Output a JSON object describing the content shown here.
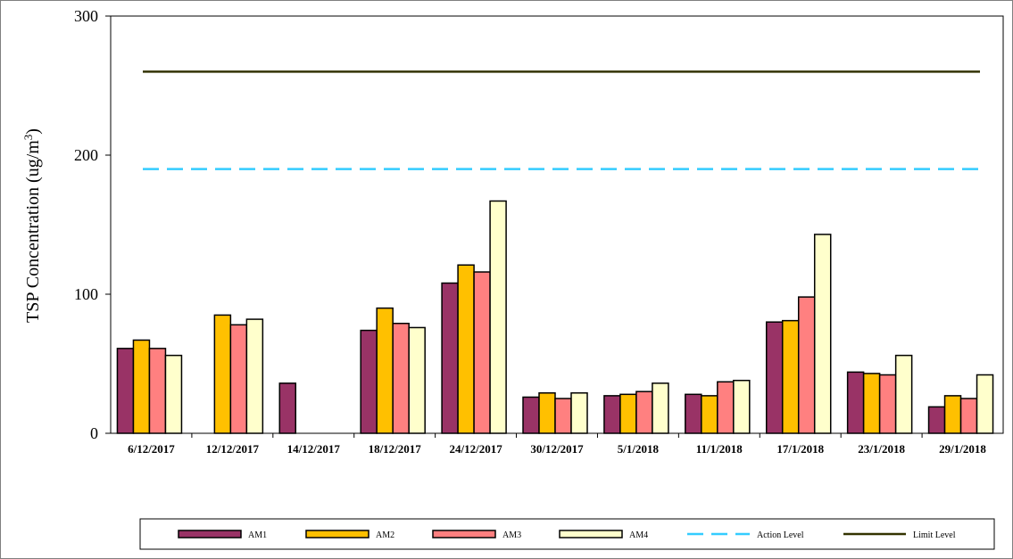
{
  "chart_data": {
    "type": "bar",
    "ylabel_prefix": "TSP Concentration (ug/m",
    "ylabel_sup": "3",
    "ylabel_suffix": ")",
    "ylim": [
      0,
      300
    ],
    "yticks": [
      "0",
      "100",
      "200",
      "300"
    ],
    "categories": [
      "6/12/2017",
      "12/12/2017",
      "14/12/2017",
      "18/12/2017",
      "24/12/2017",
      "30/12/2017",
      "5/1/2018",
      "11/1/2018",
      "17/1/2018",
      "23/1/2018",
      "29/1/2018"
    ],
    "series": [
      {
        "name": "AM1",
        "color": "#993366",
        "values": [
          61,
          null,
          36,
          74,
          108,
          26,
          27,
          28,
          80,
          44,
          19
        ]
      },
      {
        "name": "AM2",
        "color": "#ffc000",
        "values": [
          67,
          85,
          null,
          90,
          121,
          29,
          28,
          27,
          81,
          43,
          27
        ]
      },
      {
        "name": "AM3",
        "color": "#ff8080",
        "values": [
          61,
          78,
          null,
          79,
          116,
          25,
          30,
          37,
          98,
          42,
          25
        ]
      },
      {
        "name": "AM4",
        "color": "#ffffcc",
        "values": [
          56,
          82,
          null,
          76,
          167,
          29,
          36,
          38,
          143,
          56,
          42
        ]
      }
    ],
    "reference_lines": [
      {
        "name": "Action Level",
        "value": 190,
        "color": "#33ccff",
        "style": "dashed"
      },
      {
        "name": "Limit Level",
        "value": 260,
        "color": "#333300",
        "style": "solid"
      }
    ],
    "legend_position": "bottom",
    "grid": false
  }
}
